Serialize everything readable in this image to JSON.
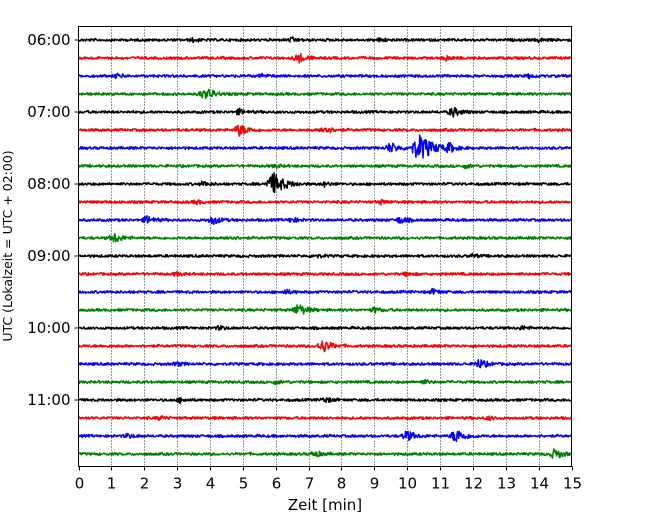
{
  "chart_data": {
    "type": "line",
    "title": "",
    "xlabel": "Zeit  [min]",
    "ylabel": "UTC (Lokalzeit = UTC + 02:00)",
    "xlim": [
      0,
      15
    ],
    "x_ticks": [
      "0",
      "1",
      "2",
      "3",
      "4",
      "5",
      "6",
      "7",
      "8",
      "9",
      "10",
      "11",
      "12",
      "13",
      "14",
      "15"
    ],
    "y_ticks": [
      "06:00",
      "07:00",
      "08:00",
      "09:00",
      "10:00",
      "11:00"
    ],
    "vertical_gridlines": true,
    "trace_interval_min": 15,
    "colors": [
      "#000000",
      "#ff0000",
      "#0000ff",
      "#008000"
    ],
    "series": [
      {
        "start": "06:00",
        "color": "#000000",
        "events": [
          [
            3.5,
            0.22
          ],
          [
            6.5,
            0.25
          ],
          [
            9.2,
            0.2
          ],
          [
            14.0,
            0.2
          ]
        ]
      },
      {
        "start": "06:15",
        "color": "#ff0000",
        "events": [
          [
            6.7,
            0.55
          ],
          [
            11.2,
            0.3
          ]
        ]
      },
      {
        "start": "06:30",
        "color": "#0000ff",
        "events": [
          [
            1.2,
            0.25
          ],
          [
            5.6,
            0.2
          ],
          [
            13.7,
            0.22
          ]
        ]
      },
      {
        "start": "06:45",
        "color": "#008000",
        "events": [
          [
            3.8,
            0.5
          ],
          [
            4.0,
            0.35
          ]
        ]
      },
      {
        "start": "07:00",
        "color": "#000000",
        "events": [
          [
            4.9,
            0.3
          ],
          [
            11.4,
            0.55
          ]
        ]
      },
      {
        "start": "07:15",
        "color": "#ff0000",
        "events": [
          [
            4.9,
            0.7
          ],
          [
            7.5,
            0.5
          ]
        ]
      },
      {
        "start": "07:30",
        "color": "#0000ff",
        "events": [
          [
            9.5,
            0.6
          ],
          [
            10.4,
            1.6
          ],
          [
            11.3,
            0.45
          ]
        ]
      },
      {
        "start": "07:45",
        "color": "#008000",
        "events": [
          [
            6.0,
            0.2
          ],
          [
            11.8,
            0.22
          ]
        ]
      },
      {
        "start": "08:00",
        "color": "#000000",
        "events": [
          [
            3.8,
            0.3
          ],
          [
            5.95,
            1.25
          ],
          [
            7.5,
            0.25
          ]
        ]
      },
      {
        "start": "08:15",
        "color": "#ff0000",
        "events": [
          [
            3.6,
            0.22
          ],
          [
            9.2,
            0.22
          ]
        ]
      },
      {
        "start": "08:30",
        "color": "#0000ff",
        "events": [
          [
            2.1,
            0.45
          ],
          [
            4.1,
            0.5
          ],
          [
            6.5,
            0.3
          ],
          [
            9.8,
            0.4
          ]
        ]
      },
      {
        "start": "08:45",
        "color": "#008000",
        "events": [
          [
            1.1,
            0.55
          ],
          [
            4.6,
            0.25
          ]
        ]
      },
      {
        "start": "09:00",
        "color": "#000000",
        "events": [
          [
            7.2,
            0.22
          ],
          [
            12.0,
            0.2
          ]
        ]
      },
      {
        "start": "09:15",
        "color": "#ff0000",
        "events": [
          [
            3.0,
            0.2
          ],
          [
            10.0,
            0.22
          ]
        ]
      },
      {
        "start": "09:30",
        "color": "#0000ff",
        "events": [
          [
            6.3,
            0.25
          ],
          [
            10.8,
            0.3
          ]
        ]
      },
      {
        "start": "09:45",
        "color": "#008000",
        "events": [
          [
            6.7,
            0.7
          ],
          [
            9.0,
            0.3
          ]
        ]
      },
      {
        "start": "10:00",
        "color": "#000000",
        "events": [
          [
            4.3,
            0.22
          ],
          [
            13.5,
            0.2
          ]
        ]
      },
      {
        "start": "10:15",
        "color": "#ff0000",
        "events": [
          [
            7.45,
            0.75
          ]
        ]
      },
      {
        "start": "10:30",
        "color": "#0000ff",
        "events": [
          [
            12.2,
            0.55
          ],
          [
            3.0,
            0.22
          ]
        ]
      },
      {
        "start": "10:45",
        "color": "#008000",
        "events": [
          [
            6.0,
            0.22
          ],
          [
            10.5,
            0.25
          ]
        ]
      },
      {
        "start": "11:00",
        "color": "#000000",
        "events": [
          [
            3.1,
            0.25
          ],
          [
            7.5,
            0.3
          ]
        ]
      },
      {
        "start": "11:15",
        "color": "#ff0000",
        "events": [
          [
            2.5,
            0.2
          ],
          [
            12.5,
            0.2
          ]
        ]
      },
      {
        "start": "11:30",
        "color": "#0000ff",
        "events": [
          [
            10.0,
            0.6
          ],
          [
            11.5,
            0.8
          ],
          [
            1.5,
            0.25
          ]
        ]
      },
      {
        "start": "11:45",
        "color": "#008000",
        "events": [
          [
            7.2,
            0.35
          ],
          [
            14.5,
            0.6
          ]
        ]
      }
    ]
  }
}
